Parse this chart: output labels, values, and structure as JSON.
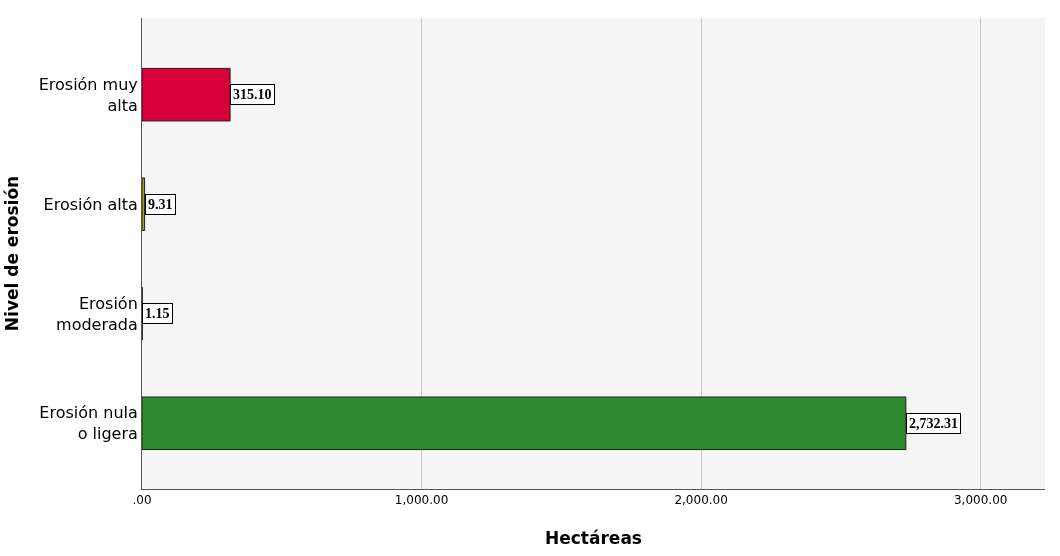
{
  "chart_data": {
    "type": "bar",
    "orientation": "horizontal",
    "xlabel": "Hectáreas",
    "ylabel": "Nivel de erosión",
    "categories": [
      "Erosión muy alta",
      "Erosión alta",
      "Erosión moderada",
      "Erosión nula o ligera"
    ],
    "values": [
      315.1,
      9.31,
      1.15,
      2732.31
    ],
    "colors": [
      "#d8003a",
      "#a39c14",
      "#3d8a5c",
      "#2f8a2f"
    ],
    "value_labels": [
      "315.10",
      "9.31",
      "1.15",
      "2,732.31"
    ],
    "xlim": [
      0,
      3230
    ],
    "xticks": [
      {
        "value": 0,
        "label": ".00"
      },
      {
        "value": 1000,
        "label": "1,000.00"
      },
      {
        "value": 2000,
        "label": "2,000.00"
      },
      {
        "value": 3000,
        "label": "3,000.00"
      }
    ],
    "grid": "x"
  }
}
